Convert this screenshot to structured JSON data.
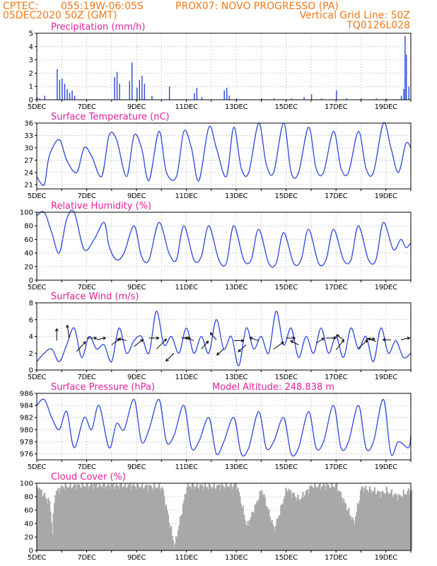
{
  "header": {
    "left_line1": "CPTEC:",
    "coords": "055:19W-06:05S",
    "station": "PROX07: NOVO PROGRESSO (PA)",
    "left_line2": "05DEC2020 50Z (GMT)",
    "grid_note": "Vertical Grid Line: 50Z",
    "model_id": "TQ0126L028"
  },
  "colors": {
    "header": "#f07818",
    "title": "#e0209a",
    "series": "#2a48d8",
    "cloud": "#a8a8a8"
  },
  "x_day_labels": [
    "5DEC",
    "7DEC",
    "9DEC",
    "11DEC",
    "13DEC",
    "15DEC",
    "17DEC",
    "19DEC"
  ],
  "chart_data": [
    {
      "id": "precip",
      "type": "bar",
      "title": "Precipitation (mm/h)",
      "ylim": [
        0,
        5
      ],
      "yticks": [
        0,
        1,
        2,
        3,
        4,
        5
      ],
      "x_days": [
        5.0,
        5.1,
        5.3,
        5.8,
        5.9,
        6.0,
        6.1,
        6.2,
        6.3,
        6.4,
        6.5,
        8.1,
        8.2,
        8.3,
        8.7,
        8.8,
        9.0,
        9.1,
        9.2,
        9.3,
        9.6,
        10.3,
        11.3,
        11.4,
        11.6,
        12.5,
        12.6,
        12.7,
        13.0,
        14.0,
        14.5,
        15.2,
        15.7,
        16.0,
        16.4,
        17.0,
        17.4,
        18.0,
        18.6,
        19.0,
        19.6,
        19.7,
        19.75,
        19.8,
        19.9
      ],
      "values": [
        0.2,
        0.1,
        0.3,
        2.3,
        1.5,
        1.6,
        1.2,
        0.8,
        0.5,
        0.7,
        0.3,
        1.7,
        2.1,
        1.2,
        1.4,
        2.8,
        0.9,
        1.5,
        1.8,
        1.2,
        0.3,
        1.0,
        0.5,
        0.9,
        0.2,
        0.7,
        0.9,
        0.3,
        0.1,
        0.1,
        0.1,
        0.1,
        0.2,
        0.4,
        0.1,
        0.7,
        0.1,
        0.1,
        0.1,
        0.1,
        0.3,
        0.8,
        4.8,
        3.4,
        1.0
      ]
    },
    {
      "id": "temp",
      "type": "line",
      "title": "Surface Temperature (nC)",
      "ylim": [
        20,
        36
      ],
      "yticks": [
        21,
        24,
        27,
        30,
        33,
        36
      ],
      "x_days": [
        5.0,
        5.3,
        5.5,
        5.9,
        6.2,
        6.6,
        6.9,
        7.2,
        7.6,
        7.9,
        8.2,
        8.6,
        8.9,
        9.2,
        9.5,
        9.9,
        10.2,
        10.6,
        10.9,
        11.2,
        11.5,
        11.9,
        12.2,
        12.6,
        12.9,
        13.2,
        13.5,
        13.9,
        14.2,
        14.5,
        14.9,
        15.2,
        15.5,
        15.9,
        16.2,
        16.5,
        16.9,
        17.2,
        17.5,
        17.9,
        18.2,
        18.5,
        18.9,
        19.2,
        19.5,
        19.8,
        20.0
      ],
      "values": [
        23,
        21,
        28,
        32,
        27,
        24,
        30,
        28,
        23,
        33,
        32,
        23,
        33,
        30,
        22,
        34,
        24,
        23,
        34,
        30,
        22,
        35,
        30,
        23,
        35,
        25,
        24,
        36,
        26,
        24,
        36,
        24,
        24,
        35,
        25,
        24,
        34,
        25,
        24,
        34,
        25,
        24,
        36,
        30,
        24,
        31,
        30
      ]
    },
    {
      "id": "rh",
      "type": "line",
      "title": "Relative Humidity (%)",
      "ylim": [
        0,
        100
      ],
      "yticks": [
        0,
        20,
        40,
        60,
        80,
        100
      ],
      "x_days": [
        5.0,
        5.3,
        5.6,
        5.9,
        6.2,
        6.5,
        6.9,
        7.3,
        7.7,
        7.9,
        8.2,
        8.5,
        8.9,
        9.2,
        9.5,
        9.9,
        10.3,
        10.6,
        10.9,
        11.3,
        11.6,
        11.9,
        12.3,
        12.6,
        12.9,
        13.3,
        13.6,
        13.9,
        14.3,
        14.6,
        14.9,
        15.3,
        15.6,
        15.9,
        16.3,
        16.6,
        16.9,
        17.3,
        17.6,
        17.9,
        18.3,
        18.6,
        18.9,
        19.3,
        19.6,
        19.8,
        20.0
      ],
      "values": [
        95,
        100,
        70,
        40,
        90,
        100,
        45,
        60,
        85,
        50,
        30,
        40,
        80,
        35,
        30,
        85,
        40,
        30,
        80,
        30,
        35,
        80,
        30,
        25,
        80,
        30,
        30,
        75,
        25,
        25,
        70,
        25,
        30,
        75,
        25,
        30,
        75,
        30,
        30,
        80,
        30,
        30,
        85,
        45,
        60,
        48,
        55
      ]
    },
    {
      "id": "wind",
      "type": "line",
      "title": "Surface Wind (m/s)",
      "ylim": [
        0,
        8
      ],
      "yticks": [
        0,
        2,
        4,
        6,
        8
      ],
      "x_days": [
        5.0,
        5.3,
        5.6,
        5.9,
        6.2,
        6.5,
        6.8,
        7.1,
        7.4,
        7.7,
        8.0,
        8.3,
        8.6,
        8.9,
        9.2,
        9.5,
        9.8,
        10.1,
        10.4,
        10.7,
        11.0,
        11.3,
        11.6,
        11.9,
        12.2,
        12.5,
        12.8,
        13.1,
        13.4,
        13.7,
        14.0,
        14.3,
        14.6,
        14.9,
        15.2,
        15.5,
        15.8,
        16.1,
        16.4,
        16.7,
        17.0,
        17.3,
        17.6,
        17.9,
        18.2,
        18.5,
        18.8,
        19.1,
        19.4,
        19.7,
        20.0
      ],
      "values": [
        1,
        2,
        2.5,
        1,
        3,
        5,
        1.5,
        4,
        2.5,
        3,
        1,
        5,
        2,
        3.5,
        4,
        2,
        7,
        3,
        4,
        2,
        5,
        2,
        4,
        2,
        6,
        2.5,
        4,
        0.5,
        5,
        2.5,
        4,
        2,
        7,
        3,
        5,
        1.5,
        4,
        2,
        5,
        2,
        4,
        1.5,
        5,
        2.5,
        4,
        1,
        5,
        2,
        3.5,
        1.5,
        2
      ]
    },
    {
      "id": "pressure",
      "type": "line",
      "title": "Surface Pressure (hPa)",
      "annotation": "Model Altitude: 248.838 m",
      "ylim": [
        975,
        986
      ],
      "yticks": [
        976,
        978,
        980,
        982,
        984,
        986
      ],
      "x_days": [
        5.0,
        5.3,
        5.6,
        5.9,
        6.2,
        6.5,
        6.9,
        7.2,
        7.5,
        7.9,
        8.2,
        8.5,
        8.9,
        9.2,
        9.5,
        9.9,
        10.2,
        10.5,
        10.9,
        11.2,
        11.5,
        11.9,
        12.2,
        12.5,
        12.9,
        13.2,
        13.5,
        13.9,
        14.2,
        14.5,
        14.9,
        15.2,
        15.5,
        15.9,
        16.2,
        16.5,
        16.9,
        17.2,
        17.5,
        17.9,
        18.2,
        18.5,
        18.9,
        19.2,
        19.5,
        19.9,
        20.0
      ],
      "values": [
        984,
        985,
        982,
        980,
        983,
        977,
        982,
        980,
        984,
        977,
        981,
        980,
        985,
        978,
        980,
        985,
        978,
        979,
        984,
        977,
        978,
        982,
        976,
        978,
        982,
        976,
        977,
        983,
        977,
        978,
        982,
        976,
        977,
        983,
        977,
        978,
        984,
        977,
        978,
        984,
        977,
        978,
        985,
        976,
        978,
        977,
        979
      ]
    },
    {
      "id": "cloud",
      "type": "bar",
      "title": "Cloud Cover (%)",
      "ylim": [
        0,
        100
      ],
      "yticks": [
        0,
        20,
        40,
        60,
        80,
        100
      ],
      "x_days": [
        5.0,
        5.3,
        5.5,
        5.6,
        5.7,
        6.0,
        7.0,
        8.0,
        9.0,
        10.0,
        10.5,
        11.0,
        12.0,
        13.0,
        13.4,
        14.0,
        14.5,
        15.0,
        15.5,
        16.0,
        17.0,
        17.7,
        18.0,
        18.8,
        19.0,
        19.5,
        20.0
      ],
      "values": [
        95,
        80,
        70,
        25,
        85,
        95,
        97,
        97,
        96,
        94,
        5,
        96,
        95,
        97,
        35,
        90,
        30,
        92,
        75,
        96,
        96,
        40,
        93,
        85,
        88,
        80,
        90
      ]
    }
  ]
}
